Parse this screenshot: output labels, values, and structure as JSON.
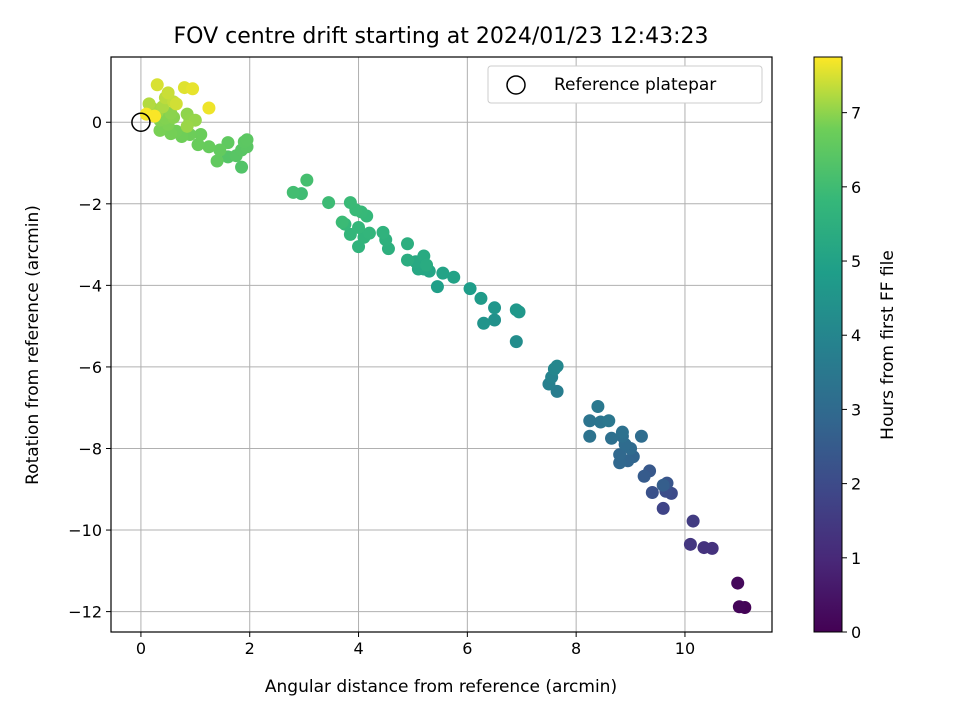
{
  "chart_data": {
    "type": "scatter",
    "title": "FOV centre drift starting at 2024/01/23 12:43:23",
    "xlabel": "Angular distance from reference (arcmin)",
    "ylabel": "Rotation from reference (arcmin)",
    "xlim": [
      -0.55,
      11.6
    ],
    "ylim": [
      -12.5,
      1.6
    ],
    "x_ticks": [
      0,
      2,
      4,
      6,
      8,
      10
    ],
    "y_ticks": [
      0,
      -2,
      -4,
      -6,
      -8,
      -10,
      -12
    ],
    "grid": true,
    "colormap": "viridis",
    "colorbar": {
      "label": "Hours from first FF file",
      "range": [
        0,
        7.75
      ],
      "ticks": [
        0,
        1,
        2,
        3,
        4,
        5,
        6,
        7
      ]
    },
    "legend": {
      "position": "top-right",
      "entries": [
        "Reference platepar"
      ]
    },
    "reference": {
      "x": 0,
      "y": 0,
      "label": "Reference platepar"
    },
    "points": [
      [
        11.1,
        -11.9,
        0.05
      ],
      [
        11.0,
        -11.88,
        0.1
      ],
      [
        10.97,
        -11.3,
        0.2
      ],
      [
        10.5,
        -10.45,
        1.25
      ],
      [
        10.35,
        -10.43,
        1.3
      ],
      [
        10.1,
        -10.35,
        1.4
      ],
      [
        10.15,
        -9.78,
        1.55
      ],
      [
        9.6,
        -9.47,
        1.8
      ],
      [
        9.75,
        -9.1,
        2.0
      ],
      [
        9.65,
        -9.05,
        2.1
      ],
      [
        9.4,
        -9.08,
        2.2
      ],
      [
        9.67,
        -8.85,
        2.3
      ],
      [
        9.35,
        -8.55,
        2.4
      ],
      [
        9.25,
        -8.68,
        2.5
      ],
      [
        9.6,
        -8.9,
        2.6
      ],
      [
        9.05,
        -8.2,
        2.8
      ],
      [
        8.95,
        -8.3,
        2.85
      ],
      [
        8.8,
        -8.35,
        2.9
      ],
      [
        8.8,
        -8.15,
        2.95
      ],
      [
        9.0,
        -8.0,
        3.0
      ],
      [
        8.9,
        -7.9,
        3.05
      ],
      [
        9.2,
        -7.7,
        3.1
      ],
      [
        8.85,
        -7.7,
        3.15
      ],
      [
        8.65,
        -7.75,
        3.2
      ],
      [
        8.85,
        -7.6,
        3.25
      ],
      [
        8.25,
        -7.7,
        3.3
      ],
      [
        8.25,
        -7.32,
        3.35
      ],
      [
        8.45,
        -7.35,
        3.4
      ],
      [
        8.6,
        -7.32,
        3.45
      ],
      [
        8.4,
        -6.97,
        3.5
      ],
      [
        7.65,
        -6.6,
        3.7
      ],
      [
        7.5,
        -6.42,
        3.8
      ],
      [
        7.55,
        -6.25,
        3.9
      ],
      [
        7.6,
        -6.05,
        4.0
      ],
      [
        7.65,
        -5.98,
        4.05
      ],
      [
        6.9,
        -5.38,
        4.25
      ],
      [
        6.5,
        -4.85,
        4.4
      ],
      [
        6.3,
        -4.93,
        4.5
      ],
      [
        6.5,
        -4.55,
        4.55
      ],
      [
        6.95,
        -4.65,
        4.6
      ],
      [
        6.9,
        -4.6,
        4.65
      ],
      [
        6.25,
        -4.32,
        4.75
      ],
      [
        6.05,
        -4.08,
        4.8
      ],
      [
        5.45,
        -4.03,
        4.9
      ],
      [
        5.75,
        -3.8,
        5.0
      ],
      [
        5.55,
        -3.7,
        5.05
      ],
      [
        5.3,
        -3.65,
        5.1
      ],
      [
        5.2,
        -3.6,
        5.15
      ],
      [
        5.1,
        -3.6,
        5.2
      ],
      [
        5.05,
        -3.42,
        5.25
      ],
      [
        5.2,
        -3.28,
        5.3
      ],
      [
        5.25,
        -3.5,
        5.35
      ],
      [
        4.9,
        -3.38,
        5.4
      ],
      [
        4.9,
        -2.98,
        5.45
      ],
      [
        4.55,
        -3.1,
        5.5
      ],
      [
        4.5,
        -2.88,
        5.55
      ],
      [
        4.45,
        -2.7,
        5.6
      ],
      [
        4.0,
        -3.05,
        5.65
      ],
      [
        4.1,
        -2.82,
        5.7
      ],
      [
        4.2,
        -2.72,
        5.72
      ],
      [
        3.85,
        -2.75,
        5.75
      ],
      [
        4.0,
        -2.58,
        5.78
      ],
      [
        3.75,
        -2.5,
        5.8
      ],
      [
        4.15,
        -2.3,
        5.82
      ],
      [
        4.05,
        -2.2,
        5.85
      ],
      [
        3.95,
        -2.15,
        5.88
      ],
      [
        3.85,
        -1.97,
        5.9
      ],
      [
        3.7,
        -2.45,
        5.92
      ],
      [
        3.45,
        -1.97,
        5.95
      ],
      [
        2.95,
        -1.75,
        6.0
      ],
      [
        2.8,
        -1.72,
        6.05
      ],
      [
        3.05,
        -1.42,
        6.1
      ],
      [
        1.85,
        -1.1,
        6.3
      ],
      [
        1.6,
        -0.85,
        6.35
      ],
      [
        1.75,
        -0.82,
        6.4
      ],
      [
        1.85,
        -0.68,
        6.42
      ],
      [
        1.95,
        -0.6,
        6.45
      ],
      [
        1.9,
        -0.48,
        6.48
      ],
      [
        1.95,
        -0.43,
        6.5
      ],
      [
        1.6,
        -0.5,
        6.55
      ],
      [
        1.4,
        -0.95,
        6.58
      ],
      [
        1.45,
        -0.68,
        6.6
      ],
      [
        1.25,
        -0.6,
        6.65
      ],
      [
        1.05,
        -0.55,
        6.68
      ],
      [
        1.1,
        -0.3,
        6.72
      ],
      [
        0.9,
        -0.3,
        6.75
      ],
      [
        0.75,
        -0.35,
        6.78
      ],
      [
        0.65,
        -0.22,
        6.8
      ],
      [
        0.55,
        -0.28,
        6.82
      ],
      [
        0.35,
        -0.2,
        6.85
      ],
      [
        0.5,
        -0.05,
        6.88
      ],
      [
        0.35,
        0.05,
        6.9
      ],
      [
        0.45,
        0.1,
        6.92
      ],
      [
        0.6,
        0.12,
        6.95
      ],
      [
        0.55,
        0.22,
        6.98
      ],
      [
        0.85,
        0.2,
        7.0
      ],
      [
        0.9,
        0.05,
        7.02
      ],
      [
        1.0,
        0.05,
        7.05
      ],
      [
        0.85,
        -0.1,
        7.08
      ],
      [
        0.3,
        0.25,
        7.1
      ],
      [
        0.2,
        0.35,
        7.15
      ],
      [
        0.4,
        0.38,
        7.2
      ],
      [
        0.15,
        0.45,
        7.25
      ],
      [
        0.45,
        0.6,
        7.3
      ],
      [
        0.6,
        0.5,
        7.35
      ],
      [
        0.5,
        0.72,
        7.4
      ],
      [
        0.65,
        0.45,
        7.45
      ],
      [
        0.3,
        0.92,
        7.5
      ],
      [
        0.8,
        0.85,
        7.55
      ],
      [
        0.95,
        0.82,
        7.6
      ],
      [
        1.25,
        0.35,
        7.65
      ],
      [
        0.1,
        0.2,
        7.7
      ],
      [
        0.25,
        0.15,
        7.72
      ]
    ]
  }
}
